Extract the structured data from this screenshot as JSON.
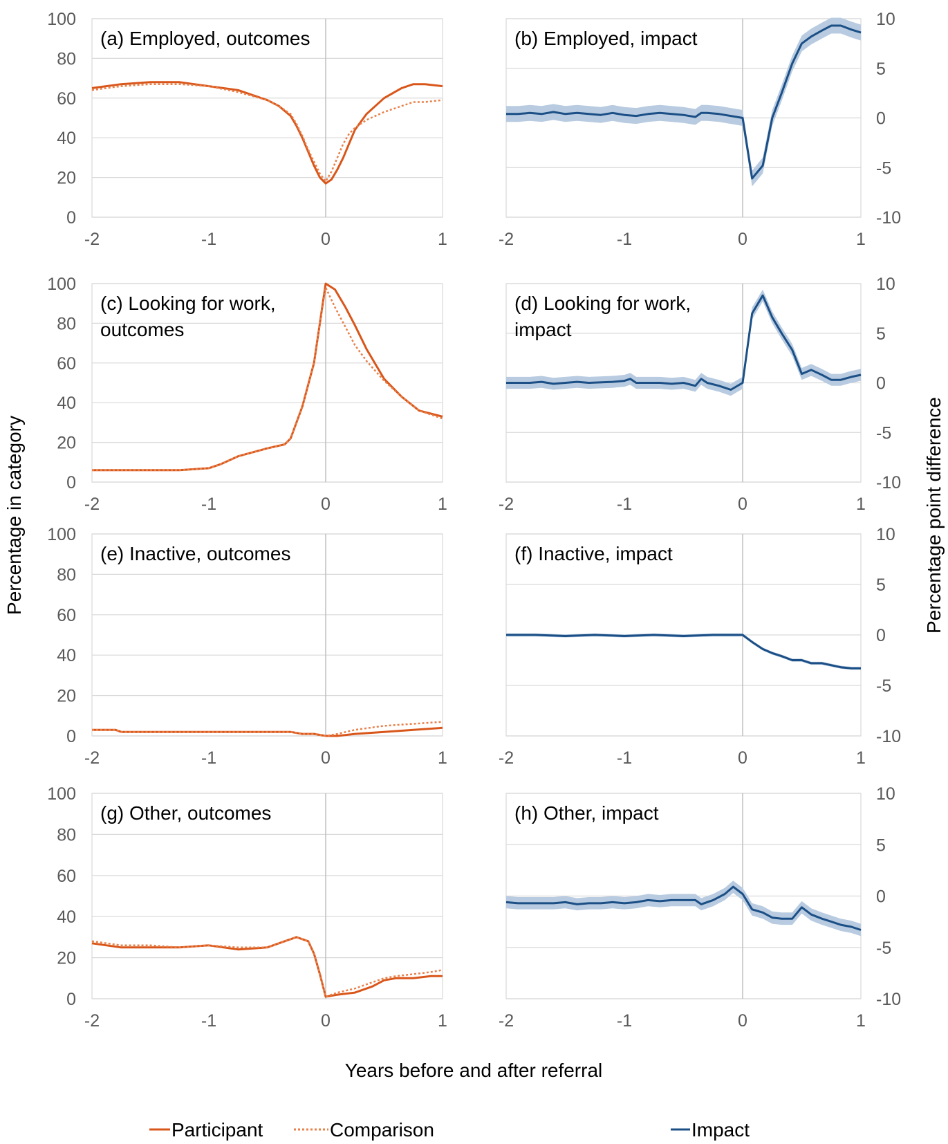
{
  "figure": {
    "y_title_left": "Percentage in category",
    "y_title_right": "Percentage point difference",
    "x_title": "Years before and after referral",
    "legend": {
      "participant": "Participant",
      "comparison": "Comparison",
      "impact": "Impact"
    }
  },
  "colors": {
    "participant": "#d9561a",
    "comparison": "#e8804a",
    "impact": "#1b4f86",
    "impact_band": "#b8cbe0",
    "grid": "#d9d9d9",
    "zero_line": "#bfbfbf"
  },
  "chart_data": [
    {
      "id": "a",
      "type": "line",
      "title_lines": [
        "(a) Employed, outcomes"
      ],
      "xlim": [
        -2,
        1
      ],
      "ylim": [
        0,
        100
      ],
      "xticks": [
        -2,
        -1,
        0,
        1
      ],
      "xtick_labels": [
        "-2",
        "-1",
        "0",
        "1"
      ],
      "yticks": [
        0,
        20,
        40,
        60,
        80,
        100
      ],
      "ytick_labels": [
        "0",
        "20",
        "40",
        "60",
        "80",
        "100"
      ],
      "series": [
        {
          "name": "Participant",
          "style": "solid",
          "x": [
            -2,
            -1.75,
            -1.5,
            -1.25,
            -1,
            -0.75,
            -0.5,
            -0.4,
            -0.3,
            -0.25,
            -0.2,
            -0.15,
            -0.1,
            -0.05,
            0,
            0.05,
            0.1,
            0.15,
            0.2,
            0.25,
            0.35,
            0.5,
            0.65,
            0.75,
            0.85,
            1
          ],
          "y": [
            65,
            67,
            68,
            68,
            66,
            64,
            59,
            56,
            51,
            46,
            40,
            33,
            26,
            20,
            17,
            19,
            24,
            30,
            37,
            44,
            52,
            60,
            65,
            67,
            67,
            66
          ]
        },
        {
          "name": "Comparison",
          "style": "dotted",
          "x": [
            -2,
            -1.75,
            -1.5,
            -1.25,
            -1,
            -0.75,
            -0.5,
            -0.4,
            -0.3,
            -0.25,
            -0.2,
            -0.15,
            -0.1,
            -0.05,
            0,
            0.05,
            0.1,
            0.15,
            0.2,
            0.25,
            0.35,
            0.5,
            0.65,
            0.75,
            0.85,
            1
          ],
          "y": [
            64,
            66,
            67,
            67,
            66,
            63,
            59,
            56,
            52,
            47,
            41,
            34,
            28,
            22,
            18,
            23,
            30,
            37,
            42,
            45,
            49,
            53,
            56,
            58,
            58,
            59
          ]
        }
      ]
    },
    {
      "id": "b",
      "type": "line",
      "title_lines": [
        "(b) Employed, impact"
      ],
      "xlim": [
        -2,
        1
      ],
      "ylim": [
        -10,
        10
      ],
      "xticks": [
        -2,
        -1,
        0,
        1
      ],
      "xtick_labels": [
        "-2",
        "-1",
        "0",
        "1"
      ],
      "yticks": [
        -10,
        -5,
        0,
        5,
        10
      ],
      "ytick_labels": [
        "-10",
        "-5",
        "0",
        "5",
        "10"
      ],
      "series": [
        {
          "name": "Impact",
          "style": "solid",
          "band": 0.8,
          "x": [
            -2,
            -1.9,
            -1.8,
            -1.7,
            -1.6,
            -1.5,
            -1.4,
            -1.3,
            -1.2,
            -1.1,
            -1,
            -0.9,
            -0.8,
            -0.7,
            -0.6,
            -0.5,
            -0.4,
            -0.35,
            -0.3,
            -0.2,
            -0.1,
            0,
            0.08,
            0.17,
            0.25,
            0.33,
            0.42,
            0.5,
            0.58,
            0.67,
            0.75,
            0.83,
            0.92,
            1
          ],
          "y": [
            0.4,
            0.4,
            0.5,
            0.4,
            0.6,
            0.4,
            0.5,
            0.4,
            0.3,
            0.5,
            0.3,
            0.2,
            0.4,
            0.5,
            0.4,
            0.3,
            0.1,
            0.5,
            0.5,
            0.4,
            0.2,
            0,
            -6.1,
            -4.8,
            0,
            2.5,
            5.5,
            7.5,
            8.2,
            8.8,
            9.3,
            9.3,
            8.9,
            8.6
          ]
        }
      ]
    },
    {
      "id": "c",
      "type": "line",
      "title_lines": [
        "(c) Looking for work,",
        "outcomes"
      ],
      "xlim": [
        -2,
        1
      ],
      "ylim": [
        0,
        100
      ],
      "xticks": [
        -2,
        -1,
        0,
        1
      ],
      "xtick_labels": [
        "-2",
        "-1",
        "0",
        "1"
      ],
      "yticks": [
        0,
        20,
        40,
        60,
        80,
        100
      ],
      "ytick_labels": [
        "0",
        "20",
        "40",
        "60",
        "80",
        "100"
      ],
      "series": [
        {
          "name": "Participant",
          "style": "solid",
          "x": [
            -2,
            -1.75,
            -1.5,
            -1.25,
            -1,
            -0.9,
            -0.75,
            -0.5,
            -0.35,
            -0.3,
            -0.2,
            -0.1,
            -0.05,
            0,
            0.08,
            0.17,
            0.25,
            0.35,
            0.5,
            0.65,
            0.8,
            1
          ],
          "y": [
            6,
            6,
            6,
            6,
            7,
            9,
            13,
            17,
            19,
            22,
            38,
            60,
            80,
            100,
            97,
            88,
            79,
            67,
            52,
            43,
            36,
            33
          ]
        },
        {
          "name": "Comparison",
          "style": "dotted",
          "x": [
            -2,
            -1.75,
            -1.5,
            -1.25,
            -1,
            -0.9,
            -0.75,
            -0.5,
            -0.35,
            -0.3,
            -0.2,
            -0.1,
            -0.05,
            0,
            0.08,
            0.17,
            0.25,
            0.35,
            0.5,
            0.65,
            0.8,
            1
          ],
          "y": [
            6,
            6,
            6,
            6,
            7,
            9,
            13,
            17,
            19,
            22,
            38,
            60,
            80,
            98,
            88,
            78,
            69,
            61,
            51,
            43,
            36,
            32
          ]
        }
      ]
    },
    {
      "id": "d",
      "type": "line",
      "title_lines": [
        "(d) Looking for work,",
        "impact"
      ],
      "xlim": [
        -2,
        1
      ],
      "ylim": [
        -10,
        10
      ],
      "xticks": [
        -2,
        -1,
        0,
        1
      ],
      "xtick_labels": [
        "-2",
        "-1",
        "0",
        "1"
      ],
      "yticks": [
        -10,
        -5,
        0,
        5,
        10
      ],
      "ytick_labels": [
        "-10",
        "-5",
        "0",
        "5",
        "10"
      ],
      "series": [
        {
          "name": "Impact",
          "style": "solid",
          "band": 0.6,
          "x": [
            -2,
            -1.8,
            -1.7,
            -1.6,
            -1.4,
            -1.3,
            -1.1,
            -1,
            -0.95,
            -0.9,
            -0.8,
            -0.7,
            -0.6,
            -0.5,
            -0.4,
            -0.35,
            -0.3,
            -0.2,
            -0.1,
            0,
            0.08,
            0.17,
            0.25,
            0.33,
            0.42,
            0.5,
            0.58,
            0.67,
            0.75,
            0.83,
            0.92,
            1
          ],
          "y": [
            0,
            0,
            0.1,
            -0.1,
            0.1,
            0,
            0.1,
            0.2,
            0.4,
            0,
            0,
            0,
            -0.1,
            0,
            -0.3,
            0.4,
            0,
            -0.3,
            -0.7,
            0,
            7,
            8.8,
            6.6,
            5,
            3.3,
            0.9,
            1.3,
            0.8,
            0.3,
            0.3,
            0.6,
            0.8
          ]
        }
      ]
    },
    {
      "id": "e",
      "type": "line",
      "title_lines": [
        "(e) Inactive, outcomes"
      ],
      "xlim": [
        -2,
        1
      ],
      "ylim": [
        0,
        100
      ],
      "xticks": [
        -2,
        -1,
        0,
        1
      ],
      "xtick_labels": [
        "-2",
        "-1",
        "0",
        "1"
      ],
      "yticks": [
        0,
        20,
        40,
        60,
        80,
        100
      ],
      "ytick_labels": [
        "0",
        "20",
        "40",
        "60",
        "80",
        "100"
      ],
      "series": [
        {
          "name": "Participant",
          "style": "solid",
          "x": [
            -2,
            -1.8,
            -1.75,
            -1.5,
            -1,
            -0.5,
            -0.3,
            -0.2,
            -0.1,
            0,
            0.1,
            0.25,
            0.5,
            0.75,
            1
          ],
          "y": [
            3,
            3,
            2,
            2,
            2,
            2,
            2,
            1,
            1,
            0,
            0,
            1,
            2,
            3,
            4
          ]
        },
        {
          "name": "Comparison",
          "style": "dotted",
          "x": [
            -2,
            -1.8,
            -1.75,
            -1.5,
            -1,
            -0.5,
            -0.3,
            -0.2,
            -0.1,
            0,
            0.1,
            0.25,
            0.5,
            0.75,
            1
          ],
          "y": [
            3,
            3,
            2,
            2,
            2,
            2,
            2,
            1,
            1,
            0,
            1,
            3,
            5,
            6,
            7
          ]
        }
      ]
    },
    {
      "id": "f",
      "type": "line",
      "title_lines": [
        "(f) Inactive, impact"
      ],
      "xlim": [
        -2,
        1
      ],
      "ylim": [
        -10,
        10
      ],
      "xticks": [
        -2,
        -1,
        0,
        1
      ],
      "xtick_labels": [
        "-2",
        "-1",
        "0",
        "1"
      ],
      "yticks": [
        -10,
        -5,
        0,
        5,
        10
      ],
      "ytick_labels": [
        "-10",
        "-5",
        "0",
        "5",
        "10"
      ],
      "series": [
        {
          "name": "Impact",
          "style": "solid",
          "band": 0.15,
          "x": [
            -2,
            -1.75,
            -1.5,
            -1.25,
            -1,
            -0.75,
            -0.5,
            -0.25,
            0,
            0.08,
            0.17,
            0.25,
            0.33,
            0.42,
            0.5,
            0.58,
            0.67,
            0.75,
            0.83,
            0.92,
            1
          ],
          "y": [
            0,
            0,
            -0.1,
            0,
            -0.1,
            0,
            -0.1,
            0,
            0,
            -0.7,
            -1.4,
            -1.8,
            -2.1,
            -2.5,
            -2.5,
            -2.8,
            -2.8,
            -3,
            -3.2,
            -3.3,
            -3.3
          ]
        }
      ]
    },
    {
      "id": "g",
      "type": "line",
      "title_lines": [
        "(g) Other, outcomes"
      ],
      "xlim": [
        -2,
        1
      ],
      "ylim": [
        0,
        100
      ],
      "xticks": [
        -2,
        -1,
        0,
        1
      ],
      "xtick_labels": [
        "-2",
        "-1",
        "0",
        "1"
      ],
      "yticks": [
        0,
        20,
        40,
        60,
        80,
        100
      ],
      "ytick_labels": [
        "0",
        "20",
        "40",
        "60",
        "80",
        "100"
      ],
      "series": [
        {
          "name": "Participant",
          "style": "solid",
          "x": [
            -2,
            -1.75,
            -1.5,
            -1.25,
            -1,
            -0.75,
            -0.5,
            -0.35,
            -0.25,
            -0.15,
            -0.1,
            -0.05,
            0,
            0.1,
            0.25,
            0.4,
            0.5,
            0.6,
            0.75,
            0.9,
            1
          ],
          "y": [
            27,
            25,
            25,
            25,
            26,
            24,
            25,
            28,
            30,
            28,
            22,
            12,
            1,
            2,
            3,
            6,
            9,
            10,
            10,
            11,
            11
          ]
        },
        {
          "name": "Comparison",
          "style": "dotted",
          "x": [
            -2,
            -1.75,
            -1.5,
            -1.25,
            -1,
            -0.75,
            -0.5,
            -0.35,
            -0.25,
            -0.15,
            -0.1,
            -0.05,
            0,
            0.1,
            0.25,
            0.4,
            0.5,
            0.6,
            0.75,
            0.9,
            1
          ],
          "y": [
            28,
            26,
            26,
            25,
            26,
            25,
            25,
            28,
            30,
            28,
            22,
            12,
            1,
            3,
            5,
            8,
            10,
            11,
            12,
            13,
            14
          ]
        }
      ]
    },
    {
      "id": "h",
      "type": "line",
      "title_lines": [
        "(h) Other, impact"
      ],
      "xlim": [
        -2,
        1
      ],
      "ylim": [
        -10,
        10
      ],
      "xticks": [
        -2,
        -1,
        0,
        1
      ],
      "xtick_labels": [
        "-2",
        "-1",
        "0",
        "1"
      ],
      "yticks": [
        -10,
        -5,
        0,
        5,
        10
      ],
      "ytick_labels": [
        "-10",
        "-5",
        "0",
        "5",
        "10"
      ],
      "series": [
        {
          "name": "Impact",
          "style": "solid",
          "band": 0.6,
          "x": [
            -2,
            -1.9,
            -1.8,
            -1.6,
            -1.5,
            -1.4,
            -1.3,
            -1.2,
            -1.1,
            -1,
            -0.9,
            -0.8,
            -0.7,
            -0.6,
            -0.5,
            -0.4,
            -0.35,
            -0.25,
            -0.15,
            -0.08,
            0,
            0.08,
            0.17,
            0.25,
            0.33,
            0.42,
            0.5,
            0.58,
            0.67,
            0.75,
            0.83,
            0.92,
            1
          ],
          "y": [
            -0.6,
            -0.7,
            -0.7,
            -0.7,
            -0.6,
            -0.8,
            -0.7,
            -0.7,
            -0.6,
            -0.7,
            -0.6,
            -0.4,
            -0.5,
            -0.4,
            -0.4,
            -0.4,
            -0.8,
            -0.4,
            0.2,
            0.9,
            0.2,
            -1.3,
            -1.6,
            -2.1,
            -2.2,
            -2.2,
            -1.1,
            -1.8,
            -2.2,
            -2.5,
            -2.8,
            -3,
            -3.3
          ]
        }
      ]
    }
  ]
}
